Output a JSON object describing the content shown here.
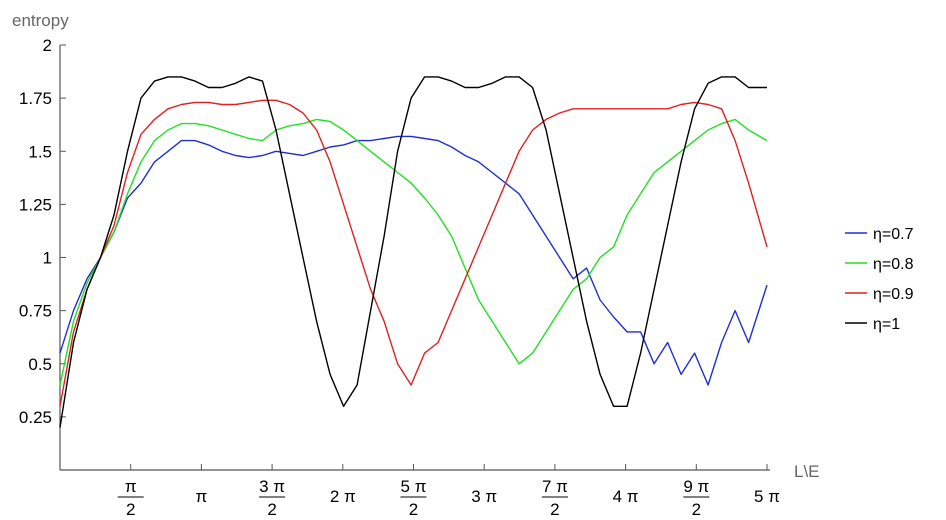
{
  "chart_data": {
    "type": "line",
    "ylabel": "entropy",
    "xlabel": "L\\E",
    "xlim": [
      0,
      15.708
    ],
    "ylim": [
      0,
      2
    ],
    "grid": false,
    "legend_position": "right",
    "y_ticks": [
      {
        "value": 0.25,
        "label": "0.25"
      },
      {
        "value": 0.5,
        "label": "0.5"
      },
      {
        "value": 0.75,
        "label": "0.75"
      },
      {
        "value": 1.0,
        "label": "1"
      },
      {
        "value": 1.25,
        "label": "1.25"
      },
      {
        "value": 1.5,
        "label": "1.5"
      },
      {
        "value": 1.75,
        "label": "1.75"
      },
      {
        "value": 2.0,
        "label": "2"
      }
    ],
    "x_ticks": [
      {
        "value": 1.5708,
        "num": "π",
        "den": "2"
      },
      {
        "value": 3.1416,
        "label": "π"
      },
      {
        "value": 4.7124,
        "num": "3 π",
        "den": "2"
      },
      {
        "value": 6.2832,
        "label": "2 π"
      },
      {
        "value": 7.854,
        "num": "5 π",
        "den": "2"
      },
      {
        "value": 9.4248,
        "label": "3 π"
      },
      {
        "value": 10.9956,
        "num": "7 π",
        "den": "2"
      },
      {
        "value": 12.5664,
        "label": "4 π"
      },
      {
        "value": 14.1372,
        "num": "9 π",
        "den": "2"
      },
      {
        "value": 15.708,
        "label": "5 π"
      }
    ],
    "series": [
      {
        "name": "η=0.7",
        "color": "#1f2fd6",
        "x": [
          0,
          0.3,
          0.6,
          0.9,
          1.2,
          1.5,
          1.8,
          2.1,
          2.4,
          2.7,
          3.0,
          3.3,
          3.6,
          3.9,
          4.2,
          4.5,
          4.8,
          5.1,
          5.4,
          5.7,
          6.0,
          6.3,
          6.6,
          6.9,
          7.2,
          7.5,
          7.8,
          8.1,
          8.4,
          8.7,
          9.0,
          9.3,
          9.6,
          9.9,
          10.2,
          10.5,
          10.8,
          11.1,
          11.4,
          11.7,
          12.0,
          12.3,
          12.6,
          12.9,
          13.2,
          13.5,
          13.8,
          14.1,
          14.4,
          14.7,
          15.0,
          15.3,
          15.708
        ],
        "y": [
          0.55,
          0.75,
          0.9,
          1.0,
          1.12,
          1.28,
          1.35,
          1.45,
          1.5,
          1.55,
          1.55,
          1.53,
          1.5,
          1.48,
          1.47,
          1.48,
          1.5,
          1.49,
          1.48,
          1.5,
          1.52,
          1.53,
          1.55,
          1.55,
          1.56,
          1.57,
          1.57,
          1.56,
          1.55,
          1.52,
          1.48,
          1.45,
          1.4,
          1.35,
          1.3,
          1.2,
          1.1,
          1.0,
          0.9,
          0.95,
          0.8,
          0.72,
          0.65,
          0.65,
          0.5,
          0.6,
          0.45,
          0.55,
          0.4,
          0.6,
          0.75,
          0.6,
          0.87
        ]
      },
      {
        "name": "η=0.8",
        "color": "#22e022",
        "x": [
          0,
          0.3,
          0.6,
          0.9,
          1.2,
          1.5,
          1.8,
          2.1,
          2.4,
          2.7,
          3.0,
          3.3,
          3.6,
          3.9,
          4.2,
          4.5,
          4.8,
          5.1,
          5.4,
          5.7,
          6.0,
          6.3,
          6.6,
          6.9,
          7.2,
          7.5,
          7.8,
          8.1,
          8.4,
          8.7,
          9.0,
          9.3,
          9.6,
          9.9,
          10.2,
          10.5,
          10.8,
          11.1,
          11.4,
          11.7,
          12.0,
          12.3,
          12.6,
          12.9,
          13.2,
          13.5,
          13.8,
          14.1,
          14.4,
          14.7,
          15.0,
          15.3,
          15.708
        ],
        "y": [
          0.4,
          0.7,
          0.88,
          1.0,
          1.12,
          1.3,
          1.45,
          1.55,
          1.6,
          1.63,
          1.63,
          1.62,
          1.6,
          1.58,
          1.56,
          1.55,
          1.6,
          1.62,
          1.63,
          1.65,
          1.64,
          1.6,
          1.55,
          1.5,
          1.45,
          1.4,
          1.35,
          1.28,
          1.2,
          1.1,
          0.95,
          0.8,
          0.7,
          0.6,
          0.5,
          0.55,
          0.65,
          0.75,
          0.85,
          0.9,
          1.0,
          1.05,
          1.2,
          1.3,
          1.4,
          1.45,
          1.5,
          1.55,
          1.6,
          1.63,
          1.65,
          1.6,
          1.55
        ]
      },
      {
        "name": "η=0.9",
        "color": "#e02020",
        "x": [
          0,
          0.3,
          0.6,
          0.9,
          1.2,
          1.5,
          1.8,
          2.1,
          2.4,
          2.7,
          3.0,
          3.3,
          3.6,
          3.9,
          4.2,
          4.5,
          4.8,
          5.1,
          5.4,
          5.7,
          6.0,
          6.3,
          6.6,
          6.9,
          7.2,
          7.5,
          7.8,
          8.1,
          8.4,
          8.7,
          9.0,
          9.3,
          9.6,
          9.9,
          10.2,
          10.5,
          10.8,
          11.1,
          11.4,
          11.7,
          12.0,
          12.3,
          12.6,
          12.9,
          13.2,
          13.5,
          13.8,
          14.1,
          14.4,
          14.7,
          15.0,
          15.3,
          15.708
        ],
        "y": [
          0.3,
          0.65,
          0.85,
          1.0,
          1.15,
          1.4,
          1.58,
          1.65,
          1.7,
          1.72,
          1.73,
          1.73,
          1.72,
          1.72,
          1.73,
          1.74,
          1.74,
          1.72,
          1.68,
          1.6,
          1.45,
          1.25,
          1.05,
          0.85,
          0.7,
          0.5,
          0.4,
          0.55,
          0.6,
          0.75,
          0.9,
          1.05,
          1.2,
          1.35,
          1.5,
          1.6,
          1.65,
          1.68,
          1.7,
          1.7,
          1.7,
          1.7,
          1.7,
          1.7,
          1.7,
          1.7,
          1.72,
          1.73,
          1.72,
          1.7,
          1.55,
          1.35,
          1.05
        ]
      },
      {
        "name": "η=1",
        "color": "#000000",
        "x": [
          0,
          0.3,
          0.6,
          0.9,
          1.2,
          1.5,
          1.8,
          2.1,
          2.4,
          2.7,
          3.0,
          3.3,
          3.6,
          3.9,
          4.2,
          4.5,
          4.8,
          5.1,
          5.4,
          5.7,
          6.0,
          6.3,
          6.6,
          6.9,
          7.2,
          7.5,
          7.8,
          8.1,
          8.4,
          8.7,
          9.0,
          9.3,
          9.6,
          9.9,
          10.2,
          10.5,
          10.8,
          11.1,
          11.4,
          11.7,
          12.0,
          12.3,
          12.6,
          12.9,
          13.2,
          13.5,
          13.8,
          14.1,
          14.4,
          14.7,
          15.0,
          15.3,
          15.708
        ],
        "y": [
          0.2,
          0.6,
          0.85,
          1.0,
          1.2,
          1.5,
          1.75,
          1.83,
          1.85,
          1.85,
          1.83,
          1.8,
          1.8,
          1.82,
          1.85,
          1.83,
          1.6,
          1.3,
          1.0,
          0.7,
          0.45,
          0.3,
          0.4,
          0.75,
          1.1,
          1.5,
          1.75,
          1.85,
          1.85,
          1.83,
          1.8,
          1.8,
          1.82,
          1.85,
          1.85,
          1.8,
          1.6,
          1.3,
          1.0,
          0.7,
          0.45,
          0.3,
          0.3,
          0.55,
          0.85,
          1.15,
          1.45,
          1.7,
          1.82,
          1.85,
          1.85,
          1.8,
          1.8
        ]
      }
    ]
  }
}
